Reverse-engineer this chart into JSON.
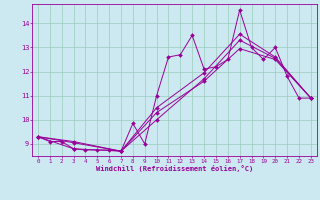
{
  "xlabel": "Windchill (Refroidissement éolien,°C)",
  "bg_color": "#cce8f0",
  "line_color": "#990099",
  "grid_color": "#99ccbb",
  "xlim": [
    -0.5,
    23.5
  ],
  "ylim": [
    8.5,
    14.8
  ],
  "xticks": [
    0,
    1,
    2,
    3,
    4,
    5,
    6,
    7,
    8,
    9,
    10,
    11,
    12,
    13,
    14,
    15,
    16,
    17,
    18,
    19,
    20,
    21,
    22,
    23
  ],
  "yticks": [
    9,
    10,
    11,
    12,
    13,
    14
  ],
  "lines": [
    [
      [
        0,
        9.3
      ],
      [
        1,
        9.1
      ],
      [
        2,
        9.1
      ],
      [
        3,
        8.8
      ],
      [
        4,
        8.75
      ],
      [
        5,
        8.75
      ],
      [
        6,
        8.75
      ],
      [
        7,
        8.7
      ],
      [
        8,
        9.85
      ],
      [
        9,
        9.0
      ],
      [
        10,
        11.0
      ],
      [
        11,
        12.6
      ],
      [
        12,
        12.7
      ],
      [
        13,
        13.5
      ],
      [
        14,
        12.1
      ],
      [
        15,
        12.2
      ],
      [
        16,
        12.5
      ],
      [
        17,
        14.55
      ],
      [
        18,
        13.0
      ],
      [
        19,
        12.5
      ],
      [
        20,
        13.0
      ],
      [
        21,
        11.8
      ],
      [
        22,
        10.9
      ],
      [
        23,
        10.9
      ]
    ],
    [
      [
        0,
        9.3
      ],
      [
        3,
        8.8
      ],
      [
        7,
        8.7
      ],
      [
        10,
        10.3
      ],
      [
        14,
        11.6
      ],
      [
        17,
        12.95
      ],
      [
        20,
        12.5
      ],
      [
        23,
        10.9
      ]
    ],
    [
      [
        0,
        9.3
      ],
      [
        3,
        9.05
      ],
      [
        7,
        8.7
      ],
      [
        10,
        10.0
      ],
      [
        14,
        11.7
      ],
      [
        17,
        13.3
      ],
      [
        20,
        12.55
      ],
      [
        23,
        10.9
      ]
    ],
    [
      [
        0,
        9.3
      ],
      [
        3,
        9.1
      ],
      [
        7,
        8.7
      ],
      [
        10,
        10.5
      ],
      [
        14,
        11.95
      ],
      [
        17,
        13.55
      ],
      [
        20,
        12.6
      ],
      [
        23,
        10.9
      ]
    ]
  ]
}
